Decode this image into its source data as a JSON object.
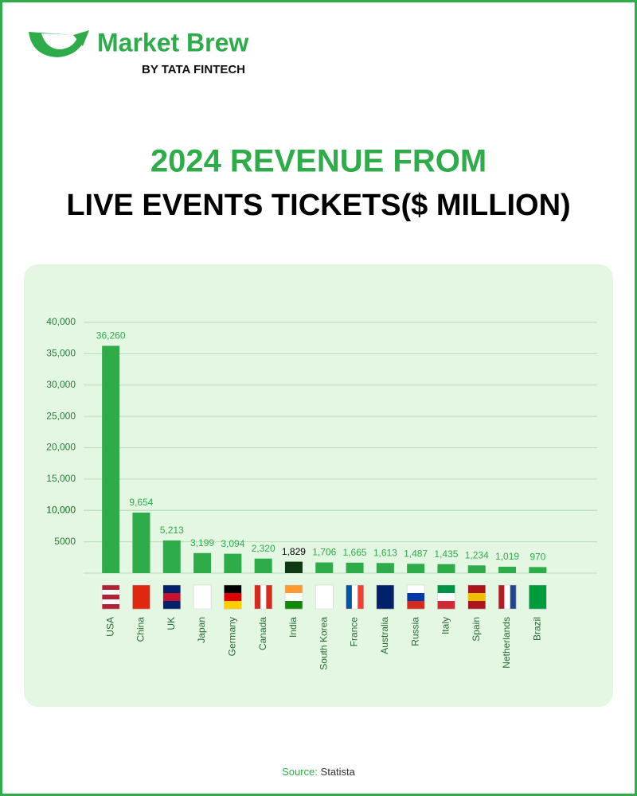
{
  "logo": {
    "name": "Market Brew",
    "tagline": "BY TATA FINTECH"
  },
  "chart_data": {
    "type": "bar",
    "title": "2024 REVENUE FROM",
    "subtitle": "LIVE EVENTS TICKETS($ MILLION)",
    "categories": [
      "USA",
      "China",
      "UK",
      "Japan",
      "Germany",
      "Canada",
      "India",
      "South Korea",
      "France",
      "Australia",
      "Russia",
      "Italy",
      "Spain",
      "Netherlands",
      "Brazil"
    ],
    "values": [
      36260,
      9654,
      5213,
      3199,
      3094,
      2320,
      1829,
      1706,
      1665,
      1613,
      1487,
      1435,
      1234,
      1019,
      970
    ],
    "value_labels": [
      "36,260",
      "9,654",
      "5,213",
      "3,199",
      "3,094",
      "2,320",
      "1,829",
      "1,706",
      "1,665",
      "1,613",
      "1,487",
      "1,435",
      "1,234",
      "1,019",
      "970"
    ],
    "colors": [
      "#2eac4a",
      "#2eac4a",
      "#2eac4a",
      "#2eac4a",
      "#2eac4a",
      "#2eac4a",
      "#0d3a12",
      "#2eac4a",
      "#2eac4a",
      "#2eac4a",
      "#2eac4a",
      "#2eac4a",
      "#2eac4a",
      "#2eac4a",
      "#2eac4a"
    ],
    "ylim": [
      0,
      40000
    ],
    "yticks": [
      5000,
      {
        "value": 10000,
        "label": "10,000"
      },
      {
        "value": 15000,
        "label": "15,000"
      },
      {
        "value": 20000,
        "label": "20,000"
      },
      {
        "value": 25000,
        "label": "25,000"
      },
      {
        "value": 10000,
        "label": "10,000"
      },
      {
        "value": 30000,
        "label": "30,000"
      },
      {
        "value": 35000,
        "label": "35,000"
      },
      {
        "value": 40000,
        "label": "40,000"
      }
    ],
    "grid": true,
    "source_label": "Source:",
    "source": "Statista"
  }
}
